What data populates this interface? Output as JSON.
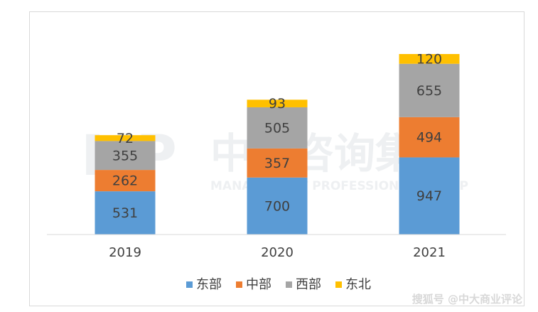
{
  "watermark": {
    "logo_text": "MP",
    "cn_text": "中大咨询集团",
    "en_text": "MANAGEMENT PROFESSIONAL GROUP"
  },
  "source_credit": "搜狐号 @中大商业评论",
  "chart_data": {
    "type": "bar",
    "stacked": true,
    "categories": [
      "2019",
      "2020",
      "2021"
    ],
    "series": [
      {
        "name": "东部",
        "color": "#5b9bd5",
        "values": [
          531,
          700,
          947
        ]
      },
      {
        "name": "中部",
        "color": "#ed7d31",
        "values": [
          262,
          357,
          494
        ]
      },
      {
        "name": "西部",
        "color": "#a5a5a5",
        "values": [
          355,
          505,
          655
        ]
      },
      {
        "name": "东北",
        "color": "#ffc000",
        "values": [
          72,
          93,
          120
        ]
      }
    ],
    "data_labels": true,
    "grid": false,
    "legend": "bottom",
    "ylim": [
      0,
      2600
    ]
  }
}
